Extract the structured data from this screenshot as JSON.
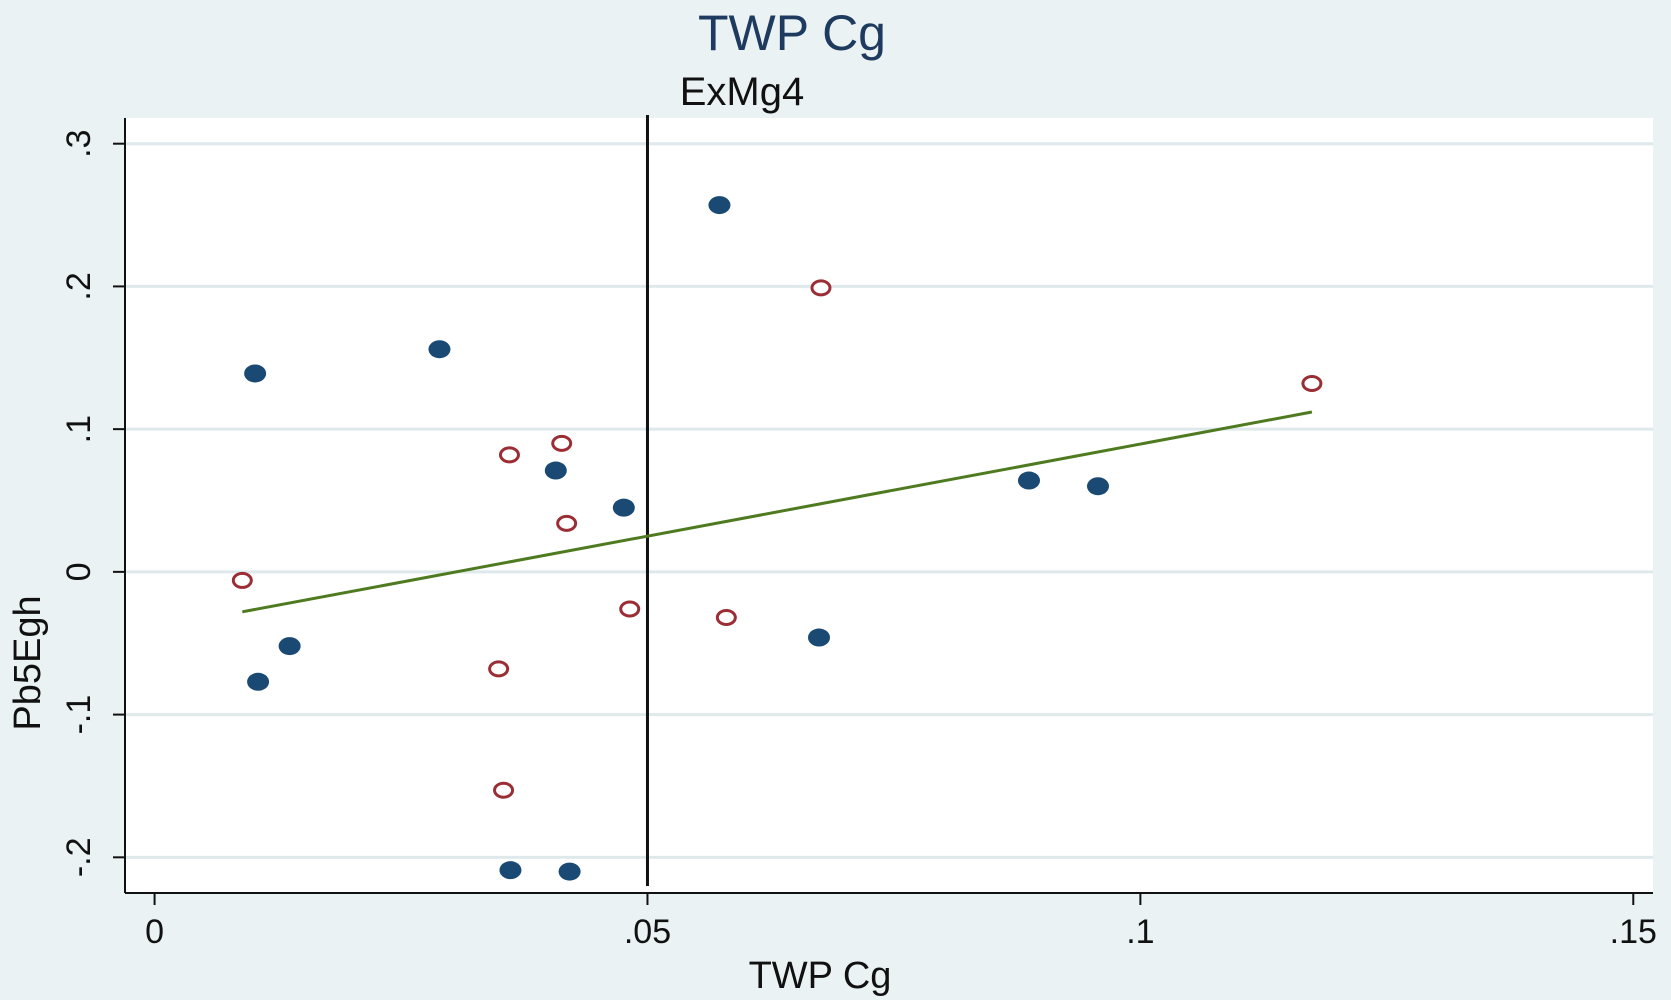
{
  "chart_data": {
    "type": "scatter",
    "title": "TWP Cg",
    "subtitle": "ExMg4",
    "xlabel": "TWP Cg",
    "ylabel": "Pb5Egh",
    "xlim": [
      -0.003,
      0.152
    ],
    "ylim": [
      -0.225,
      0.318
    ],
    "xticks": [
      0,
      0.05,
      0.1,
      0.15
    ],
    "xtick_labels": [
      "0",
      ".05",
      ".1",
      ".15"
    ],
    "yticks": [
      -0.2,
      -0.1,
      0,
      0.1,
      0.2,
      0.3
    ],
    "ytick_labels": [
      "-.2",
      "-.1",
      "0",
      ".1",
      ".2",
      ".3"
    ],
    "grid": true,
    "vline": 0.05,
    "colors": {
      "filled": "#1a4a73",
      "hollow": "#9b2d35",
      "fit": "#4e7a20",
      "vline": "#111111",
      "plot_bg": "#ffffff",
      "grid": "#dfe9ec",
      "bg": "#eaf2f3"
    },
    "series": [
      {
        "marker": "filled",
        "x": [
          0.0102,
          0.0289,
          0.0105,
          0.0137,
          0.0407,
          0.0476,
          0.0573,
          0.0887,
          0.0957,
          0.0674,
          0.0361,
          0.0421
        ],
        "y": [
          0.139,
          0.156,
          -0.077,
          -0.052,
          0.071,
          0.045,
          0.257,
          0.064,
          0.06,
          -0.046,
          -0.209,
          -0.21
        ]
      },
      {
        "marker": "hollow",
        "x": [
          0.0089,
          0.036,
          0.0413,
          0.0418,
          0.0482,
          0.058,
          0.0676,
          0.1174,
          0.0349,
          0.0354
        ],
        "y": [
          -0.006,
          0.082,
          0.09,
          0.034,
          -0.026,
          -0.032,
          0.199,
          0.132,
          -0.068,
          -0.153
        ]
      }
    ],
    "fit_line": {
      "x": [
        0.0089,
        0.1174
      ],
      "y": [
        -0.028,
        0.112
      ]
    }
  }
}
